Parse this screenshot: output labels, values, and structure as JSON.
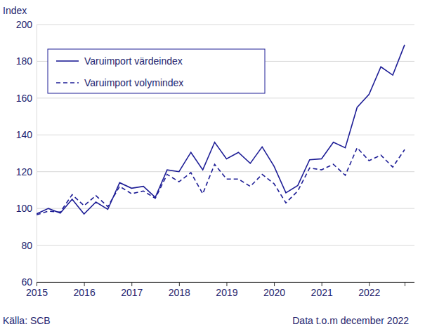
{
  "chart_data": {
    "type": "line",
    "ylabel": "Index",
    "source": "Källa: SCB",
    "note": "Data t.o.m december 2022",
    "categories": [
      "2015",
      null,
      null,
      null,
      "2016",
      null,
      null,
      null,
      "2017",
      null,
      null,
      null,
      "2018",
      null,
      null,
      null,
      "2019",
      null,
      null,
      null,
      "2020",
      null,
      null,
      null,
      "2021",
      null,
      null,
      null,
      "2022",
      null,
      null,
      null
    ],
    "series": [
      {
        "name": "Varuimport värdeindex",
        "color": "#1e1e96",
        "line_style": "solid",
        "values": [
          97,
          100,
          97.5,
          105,
          97,
          103.5,
          99.5,
          114,
          111,
          112,
          106,
          121,
          120,
          130.5,
          121,
          136,
          127,
          130.5,
          124.5,
          133.5,
          123,
          108.5,
          112.5,
          126.5,
          127,
          136,
          133,
          155,
          162,
          177,
          172.5,
          189
        ]
      },
      {
        "name": "Varuimport volymindex",
        "color": "#1e1e96",
        "line_style": "dashed",
        "values": [
          96.5,
          98.5,
          98,
          107.5,
          101.5,
          107,
          101,
          112,
          108,
          109.5,
          105.5,
          118.5,
          114.5,
          119.5,
          108,
          124,
          116,
          116,
          112,
          118.5,
          113.5,
          103,
          109.5,
          122,
          121,
          124,
          118,
          133,
          126,
          129,
          122.5,
          132
        ]
      }
    ],
    "ylim": [
      60,
      200
    ],
    "yticks": [
      60,
      80,
      100,
      120,
      140,
      160,
      180,
      200
    ],
    "grid": true,
    "legend": "top-left"
  }
}
